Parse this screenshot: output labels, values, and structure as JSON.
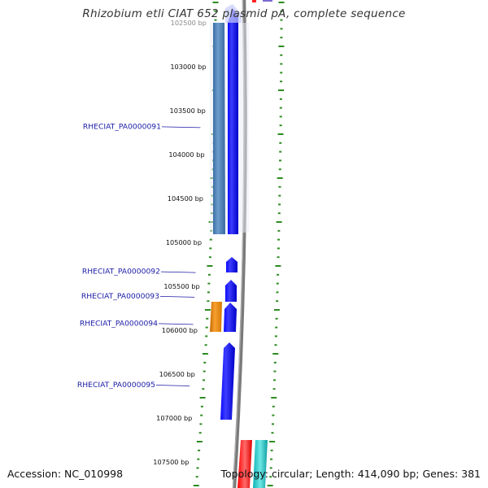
{
  "title": "Rhizobium etli CIAT 652 plasmid pA, complete sequence",
  "accession": "Accession: NC_010998",
  "summary": "Topology: circular; Length: 414,090 bp; Genes: 381",
  "colors": {
    "axis_tick": "#2e8b22",
    "gene_label": "#1a1aa6",
    "gene_blue": "#0a0aff",
    "gene_steel": "#4d82b8",
    "gene_orange": "#e88a10",
    "gene_red": "#ff1a1a",
    "gene_cyan": "#22c8c8",
    "backbone": "#888888"
  },
  "scale_labels": [
    {
      "bp": 102500,
      "text": "102500 bp"
    },
    {
      "bp": 103000,
      "text": "103000 bp"
    },
    {
      "bp": 103500,
      "text": "103500 bp"
    },
    {
      "bp": 104000,
      "text": "104000 bp"
    },
    {
      "bp": 104500,
      "text": "104500 bp"
    },
    {
      "bp": 105000,
      "text": "105000 bp"
    },
    {
      "bp": 105500,
      "text": "105500 bp"
    },
    {
      "bp": 106000,
      "text": "106000 bp"
    },
    {
      "bp": 106500,
      "text": "106500 bp"
    },
    {
      "bp": 107000,
      "text": "107000 bp"
    },
    {
      "bp": 107500,
      "text": "107500 bp"
    }
  ],
  "gene_labels": [
    {
      "id": "RHECIAT_PA0000091",
      "bp": 103680
    },
    {
      "id": "RHECIAT_PA0000092",
      "bp": 105330
    },
    {
      "id": "RHECIAT_PA0000093",
      "bp": 105610
    },
    {
      "id": "RHECIAT_PA0000094",
      "bp": 105920
    },
    {
      "id": "RHECIAT_PA0000095",
      "bp": 106620
    }
  ]
}
